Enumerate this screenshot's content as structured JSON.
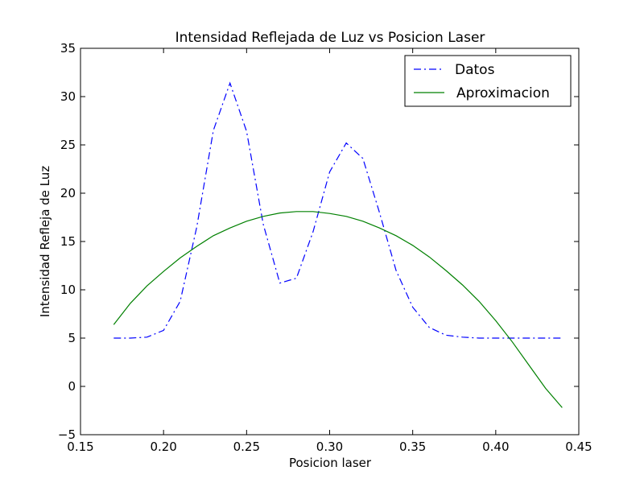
{
  "chart_data": {
    "type": "line",
    "title": "Intensidad Reflejada de Luz vs Posicion Laser",
    "xlabel": "Posicion laser",
    "ylabel": "Intensidad Refleja de Luz",
    "xlim": [
      0.15,
      0.45
    ],
    "ylim": [
      -5,
      35
    ],
    "xticks": [
      "0.15",
      "0.20",
      "0.25",
      "0.30",
      "0.35",
      "0.40",
      "0.45"
    ],
    "yticks": [
      "35",
      "30",
      "25",
      "20",
      "15",
      "10",
      "5",
      "0",
      "−5"
    ],
    "grid": false,
    "legend_position": "top-right",
    "series": [
      {
        "name": "Datos",
        "style": "dashdot",
        "color": "#0000ff",
        "x": [
          0.17,
          0.18,
          0.19,
          0.2,
          0.21,
          0.22,
          0.23,
          0.24,
          0.25,
          0.26,
          0.27,
          0.28,
          0.29,
          0.3,
          0.31,
          0.32,
          0.33,
          0.34,
          0.35,
          0.36,
          0.37,
          0.38,
          0.39,
          0.4,
          0.41,
          0.42,
          0.43,
          0.44
        ],
        "y": [
          5.0,
          5.0,
          5.1,
          5.8,
          8.8,
          16.5,
          26.5,
          31.4,
          26.4,
          16.8,
          10.7,
          11.2,
          16.0,
          22.2,
          25.2,
          23.6,
          18.0,
          12.0,
          8.2,
          6.1,
          5.3,
          5.1,
          5.0,
          5.0,
          5.0,
          5.0,
          5.0,
          5.0
        ]
      },
      {
        "name": "Aproximacion",
        "style": "solid",
        "color": "#008000",
        "x": [
          0.17,
          0.18,
          0.19,
          0.2,
          0.21,
          0.22,
          0.23,
          0.24,
          0.25,
          0.26,
          0.27,
          0.28,
          0.29,
          0.3,
          0.31,
          0.32,
          0.33,
          0.34,
          0.35,
          0.36,
          0.37,
          0.38,
          0.39,
          0.4,
          0.41,
          0.42,
          0.43,
          0.44
        ],
        "y": [
          6.4,
          8.6,
          10.4,
          11.9,
          13.3,
          14.5,
          15.6,
          16.4,
          17.1,
          17.6,
          17.95,
          18.1,
          18.1,
          17.9,
          17.6,
          17.1,
          16.4,
          15.6,
          14.6,
          13.4,
          12.0,
          10.5,
          8.8,
          6.8,
          4.6,
          2.2,
          -0.2,
          -2.2
        ]
      }
    ]
  }
}
